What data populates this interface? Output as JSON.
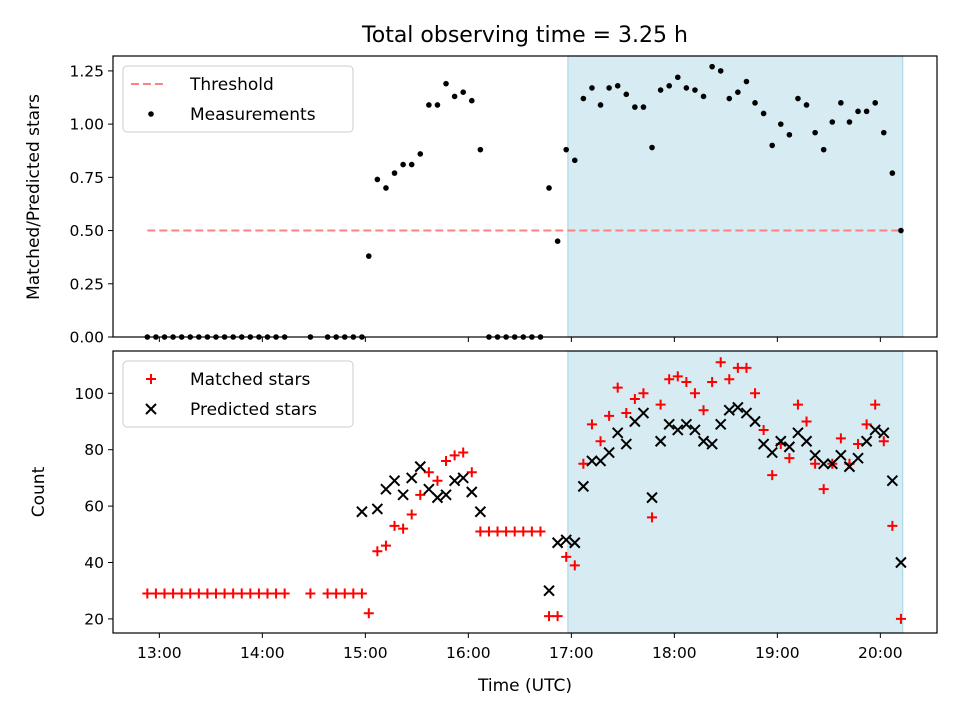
{
  "title": "Total observing time = 3.25 h",
  "colors": {
    "threshold": "#ff8080",
    "measurements": "#000000",
    "matched": "#ff0000",
    "predicted": "#000000",
    "shade": "#add8e6"
  },
  "chart_data": [
    {
      "type": "scatter",
      "ylabel": "Matched/Predicted stars",
      "xlim": [
        "12:33",
        "20:33"
      ],
      "ylim": [
        0,
        1.32
      ],
      "yticks": [
        "0.00",
        "0.25",
        "0.50",
        "0.75",
        "1.00",
        "1.25"
      ],
      "shaded_region": [
        "16:58",
        "20:13"
      ],
      "legend": {
        "placement": "top-left",
        "entries": [
          "Threshold",
          "Measurements"
        ]
      },
      "series": [
        {
          "name": "Threshold",
          "style": "dashed-line",
          "x": [
            "12:53",
            "20:13"
          ],
          "y": [
            0.5,
            0.5
          ]
        },
        {
          "name": "Measurements",
          "style": "dot",
          "x": [
            "12:53",
            "12:58",
            "13:03",
            "13:08",
            "13:13",
            "13:18",
            "13:23",
            "13:28",
            "13:33",
            "13:38",
            "13:43",
            "13:48",
            "13:53",
            "13:58",
            "14:03",
            "14:08",
            "14:13",
            "14:28",
            "14:38",
            "14:43",
            "14:48",
            "14:53",
            "14:58",
            "15:02",
            "15:07",
            "15:12",
            "15:17",
            "15:22",
            "15:27",
            "15:32",
            "15:37",
            "15:42",
            "15:47",
            "15:52",
            "15:57",
            "16:02",
            "16:07",
            "16:12",
            "16:17",
            "16:22",
            "16:27",
            "16:32",
            "16:37",
            "16:42",
            "16:47",
            "16:52",
            "16:57",
            "17:02",
            "17:07",
            "17:12",
            "17:17",
            "17:22",
            "17:27",
            "17:32",
            "17:37",
            "17:42",
            "17:47",
            "17:52",
            "17:57",
            "18:02",
            "18:07",
            "18:12",
            "18:17",
            "18:22",
            "18:27",
            "18:32",
            "18:37",
            "18:42",
            "18:47",
            "18:52",
            "18:57",
            "19:02",
            "19:07",
            "19:12",
            "19:17",
            "19:22",
            "19:27",
            "19:32",
            "19:37",
            "19:42",
            "19:47",
            "19:52",
            "19:57",
            "20:02",
            "20:07",
            "20:12"
          ],
          "y": [
            0.0,
            0.0,
            0.0,
            0.0,
            0.0,
            0.0,
            0.0,
            0.0,
            0.0,
            0.0,
            0.0,
            0.0,
            0.0,
            0.0,
            0.0,
            0.0,
            0.0,
            0.0,
            0.0,
            0.0,
            0.0,
            0.0,
            0.0,
            0.38,
            0.74,
            0.7,
            0.77,
            0.81,
            0.81,
            0.86,
            1.09,
            1.09,
            1.19,
            1.13,
            1.15,
            1.11,
            0.88,
            0.0,
            0.0,
            0.0,
            0.0,
            0.0,
            0.0,
            0.0,
            0.7,
            0.45,
            0.88,
            0.83,
            1.12,
            1.17,
            1.09,
            1.17,
            1.18,
            1.14,
            1.08,
            1.08,
            0.89,
            1.16,
            1.18,
            1.22,
            1.17,
            1.16,
            1.13,
            1.27,
            1.25,
            1.12,
            1.15,
            1.2,
            1.1,
            1.05,
            0.9,
            1.0,
            0.95,
            1.12,
            1.09,
            0.96,
            0.88,
            1.01,
            1.1,
            1.01,
            1.06,
            1.06,
            1.1,
            0.96,
            0.77,
            0.5
          ]
        }
      ]
    },
    {
      "type": "scatter",
      "xlabel": "Time (UTC)",
      "ylabel": "Count",
      "xlim": [
        "12:33",
        "20:33"
      ],
      "ylim": [
        15,
        115
      ],
      "xticks": [
        "13:00",
        "14:00",
        "15:00",
        "16:00",
        "17:00",
        "18:00",
        "19:00",
        "20:00"
      ],
      "yticks": [
        "20",
        "40",
        "60",
        "80",
        "100"
      ],
      "shaded_region": [
        "16:58",
        "20:13"
      ],
      "legend": {
        "placement": "top-left",
        "entries": [
          "Matched stars",
          "Predicted stars"
        ]
      },
      "series": [
        {
          "name": "Matched stars",
          "marker": "+",
          "x": [
            "12:53",
            "12:58",
            "13:03",
            "13:08",
            "13:13",
            "13:18",
            "13:23",
            "13:28",
            "13:33",
            "13:38",
            "13:43",
            "13:48",
            "13:53",
            "13:58",
            "14:03",
            "14:08",
            "14:13",
            "14:28",
            "14:38",
            "14:43",
            "14:48",
            "14:53",
            "14:58",
            "15:02",
            "15:07",
            "15:12",
            "15:17",
            "15:22",
            "15:27",
            "15:32",
            "15:37",
            "15:42",
            "15:47",
            "15:52",
            "15:57",
            "16:02",
            "16:07",
            "16:12",
            "16:17",
            "16:22",
            "16:27",
            "16:32",
            "16:37",
            "16:42",
            "16:47",
            "16:52",
            "16:57",
            "17:02",
            "17:07",
            "17:12",
            "17:17",
            "17:22",
            "17:27",
            "17:32",
            "17:37",
            "17:42",
            "17:47",
            "17:52",
            "17:57",
            "18:02",
            "18:07",
            "18:12",
            "18:17",
            "18:22",
            "18:27",
            "18:32",
            "18:37",
            "18:42",
            "18:47",
            "18:52",
            "18:57",
            "19:02",
            "19:07",
            "19:12",
            "19:17",
            "19:22",
            "19:27",
            "19:32",
            "19:37",
            "19:42",
            "19:47",
            "19:52",
            "19:57",
            "20:02",
            "20:07",
            "20:12"
          ],
          "y": [
            29,
            29,
            29,
            29,
            29,
            29,
            29,
            29,
            29,
            29,
            29,
            29,
            29,
            29,
            29,
            29,
            29,
            29,
            29,
            29,
            29,
            29,
            29,
            22,
            44,
            46,
            53,
            52,
            57,
            64,
            72,
            69,
            76,
            78,
            79,
            72,
            51,
            51,
            51,
            51,
            51,
            51,
            51,
            51,
            21,
            21,
            42,
            39,
            75,
            89,
            83,
            92,
            102,
            93,
            98,
            100,
            56,
            96,
            105,
            106,
            104,
            100,
            94,
            104,
            111,
            105,
            109,
            109,
            100,
            87,
            71,
            82,
            77,
            96,
            90,
            75,
            66,
            75,
            84,
            75,
            82,
            89,
            96,
            83,
            53,
            20
          ]
        },
        {
          "name": "Predicted stars",
          "marker": "x",
          "x": [
            "14:58",
            "15:07",
            "15:12",
            "15:17",
            "15:22",
            "15:27",
            "15:32",
            "15:37",
            "15:42",
            "15:47",
            "15:52",
            "15:57",
            "16:02",
            "16:07",
            "16:47",
            "16:52",
            "16:57",
            "17:02",
            "17:07",
            "17:12",
            "17:17",
            "17:22",
            "17:27",
            "17:32",
            "17:37",
            "17:42",
            "17:47",
            "17:52",
            "17:57",
            "18:02",
            "18:07",
            "18:12",
            "18:17",
            "18:22",
            "18:27",
            "18:32",
            "18:37",
            "18:42",
            "18:47",
            "18:52",
            "18:57",
            "19:02",
            "19:07",
            "19:12",
            "19:17",
            "19:22",
            "19:27",
            "19:32",
            "19:37",
            "19:42",
            "19:47",
            "19:52",
            "19:57",
            "20:02",
            "20:07",
            "20:12"
          ],
          "y": [
            58,
            59,
            66,
            69,
            64,
            70,
            74,
            66,
            63,
            64,
            69,
            70,
            65,
            58,
            30,
            47,
            48,
            47,
            67,
            76,
            76,
            79,
            86,
            82,
            90,
            93,
            63,
            83,
            89,
            87,
            89,
            87,
            83,
            82,
            89,
            94,
            95,
            93,
            90,
            82,
            79,
            83,
            81,
            86,
            83,
            78,
            75,
            75,
            78,
            74,
            77,
            83,
            87,
            86,
            69,
            40
          ]
        }
      ]
    }
  ]
}
